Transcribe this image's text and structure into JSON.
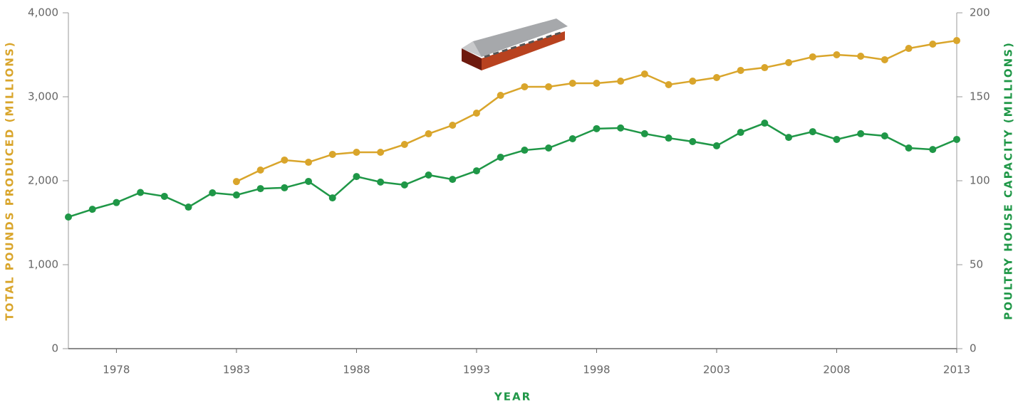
{
  "chart_data": {
    "type": "line",
    "x_label": "YEAR",
    "y_label": "TOTAL POUNDS PRODUCED (MILLIONS)",
    "y2_label": "POULTRY HOUSE CAPACITY (MILLIONS)",
    "x": [
      1976,
      1977,
      1978,
      1979,
      1980,
      1981,
      1982,
      1983,
      1984,
      1985,
      1986,
      1987,
      1988,
      1989,
      1990,
      1991,
      1992,
      1993,
      1994,
      1995,
      1996,
      1997,
      1998,
      1999,
      2000,
      2001,
      2002,
      2003,
      2004,
      2005,
      2006,
      2007,
      2008,
      2009,
      2010,
      2011,
      2012,
      2013
    ],
    "xlim": [
      1976,
      2013
    ],
    "xticks": [
      1978,
      1983,
      1988,
      1993,
      1998,
      2003,
      2008,
      2013
    ],
    "ylim": [
      0,
      4000
    ],
    "yticks": [
      0,
      {
        "value": 1000,
        "label": "1,000"
      },
      {
        "value": 2000,
        "label": "2,000"
      },
      {
        "value": 3000,
        "label": "3,000"
      },
      {
        "value": 4000,
        "label": "4,000"
      }
    ],
    "y2lim": [
      0,
      200
    ],
    "y2ticks": [
      0,
      50,
      100,
      150,
      200
    ],
    "series": [
      {
        "name": "Total pounds produced",
        "color": "#d9a52b",
        "axis": "y",
        "values": [
          null,
          null,
          null,
          null,
          null,
          null,
          null,
          1990,
          2127,
          2246,
          2220,
          2314,
          2339,
          2339,
          2432,
          2559,
          2661,
          2805,
          3017,
          3119,
          3119,
          3161,
          3161,
          3186,
          3271,
          3144,
          3186,
          3229,
          3314,
          3347,
          3407,
          3475,
          3500,
          3483,
          3441,
          3576,
          3627,
          3669
        ]
      },
      {
        "name": "Poultry house capacity",
        "color": "#1f9747",
        "axis": "y2",
        "values": [
          78.4,
          83,
          87,
          93,
          90.7,
          84.3,
          92.8,
          91.5,
          95.3,
          95.8,
          99.6,
          89.8,
          102.5,
          99.2,
          97.5,
          103.4,
          100.8,
          105.9,
          114,
          118.2,
          119.5,
          125,
          131,
          131.4,
          128,
          125.4,
          123.3,
          120.8,
          128.8,
          134.3,
          125.8,
          129.2,
          124.6,
          128,
          126.7,
          119.5,
          118.6,
          124.6
        ]
      }
    ]
  }
}
